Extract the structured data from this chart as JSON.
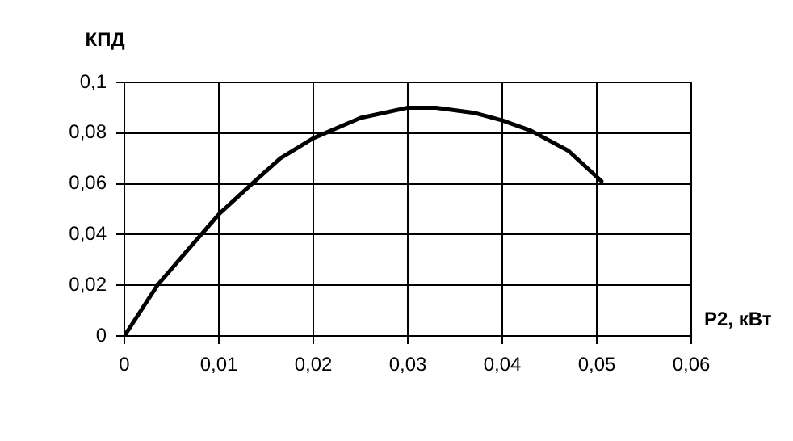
{
  "chart_data": {
    "type": "line",
    "ylabel": "КПД",
    "xlabel": "P2, кВт",
    "x": [
      0,
      0.0035,
      0.0065,
      0.01,
      0.0135,
      0.0165,
      0.02,
      0.025,
      0.03,
      0.033,
      0.037,
      0.04,
      0.043,
      0.047,
      0.0505
    ],
    "series": [
      {
        "color": "#000000",
        "values": [
          0,
          0.02,
          0.033,
          0.048,
          0.06,
          0.07,
          0.078,
          0.086,
          0.09,
          0.09,
          0.088,
          0.085,
          0.081,
          0.073,
          0.061
        ]
      }
    ],
    "xlim": [
      0,
      0.06
    ],
    "xticks": [
      {
        "value": 0,
        "label": "0"
      },
      {
        "value": 0.01,
        "label": "0,01"
      },
      {
        "value": 0.02,
        "label": "0,02"
      },
      {
        "value": 0.03,
        "label": "0,03"
      },
      {
        "value": 0.04,
        "label": "0,04"
      },
      {
        "value": 0.05,
        "label": "0,05"
      },
      {
        "value": 0.06,
        "label": "0,06"
      }
    ],
    "ylim": [
      0,
      0.1
    ],
    "yticks": [
      {
        "value": 0,
        "label": "0"
      },
      {
        "value": 0.02,
        "label": "0,02"
      },
      {
        "value": 0.04,
        "label": "0,04"
      },
      {
        "value": 0.06,
        "label": "0,06"
      },
      {
        "value": 0.08,
        "label": "0,08"
      },
      {
        "value": 0.1,
        "label": "0,1"
      }
    ],
    "grid": true,
    "legend": false,
    "marker": "none",
    "line_style": "solid"
  }
}
